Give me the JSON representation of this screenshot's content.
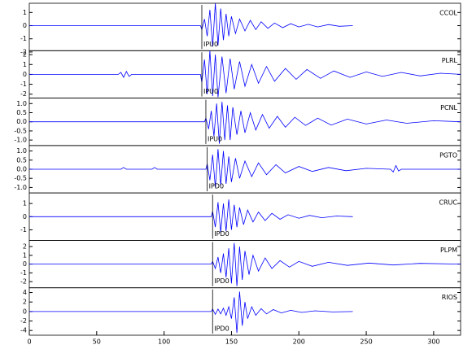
{
  "chart_data": [
    {
      "type": "line",
      "title": "CCOL",
      "color": "#0000ff",
      "xlim": [
        0,
        320
      ],
      "ylim": [
        -1.9,
        1.7
      ],
      "yticks": [
        -2,
        -1,
        0,
        1
      ],
      "pick": {
        "x": 128,
        "label": "IPU0"
      },
      "x": [
        0,
        127,
        128,
        130,
        132,
        134,
        136,
        138,
        140,
        142,
        144,
        146,
        148,
        150,
        153,
        156,
        160,
        164,
        168,
        172,
        177,
        182,
        188,
        194,
        200,
        207,
        214,
        222,
        230,
        240
      ],
      "values": [
        0,
        0,
        -0.3,
        0.5,
        -0.8,
        1.2,
        -1.6,
        1.7,
        -1.5,
        1.3,
        -1.1,
        0.9,
        -0.8,
        0.7,
        -0.6,
        0.5,
        -0.4,
        0.4,
        -0.3,
        0.3,
        -0.2,
        0.2,
        -0.15,
        0.15,
        -0.1,
        0.1,
        -0.1,
        0.08,
        -0.05,
        0
      ]
    },
    {
      "type": "line",
      "title": "PLRL",
      "color": "#0000ff",
      "xlim": [
        0,
        320
      ],
      "ylim": [
        -2.4,
        2.4
      ],
      "yticks": [
        -2,
        -1,
        0,
        1,
        2
      ],
      "pick": {
        "x": 128,
        "label": "IPU0"
      },
      "x": [
        0,
        66,
        68,
        70,
        72,
        74,
        76,
        127,
        128,
        130,
        132,
        134,
        136,
        138,
        140,
        143,
        146,
        149,
        152,
        156,
        160,
        165,
        170,
        176,
        182,
        190,
        198,
        206,
        216,
        226,
        238,
        250,
        262,
        276,
        290,
        305,
        320
      ],
      "values": [
        0,
        0,
        0.2,
        -0.3,
        0.3,
        -0.2,
        0,
        0,
        -0.8,
        1.5,
        -2.0,
        2.4,
        -2.2,
        2.0,
        -2.3,
        1.8,
        -1.9,
        1.6,
        -1.5,
        1.3,
        -1.2,
        1.0,
        -0.9,
        0.8,
        -0.7,
        0.6,
        -0.5,
        0.5,
        -0.4,
        0.35,
        -0.3,
        0.25,
        -0.2,
        0.2,
        -0.15,
        0.12,
        0
      ]
    },
    {
      "type": "line",
      "title": "PCNL",
      "color": "#0000ff",
      "xlim": [
        0,
        320
      ],
      "ylim": [
        -1.3,
        1.3
      ],
      "yticks": [
        {
          "value": -1,
          "label": "-1.0"
        },
        {
          "value": -0.5,
          "label": "-0.5"
        },
        {
          "value": 0,
          "label": "0.0"
        },
        {
          "value": 0.5,
          "label": "0.5"
        },
        {
          "value": 1,
          "label": "1.0"
        }
      ],
      "pick": {
        "x": 131,
        "label": "IPU0"
      },
      "x": [
        0,
        130,
        131,
        133,
        135,
        137,
        139,
        141,
        143,
        145,
        147,
        149,
        151,
        154,
        157,
        160,
        164,
        168,
        173,
        178,
        184,
        190,
        197,
        205,
        214,
        224,
        236,
        250,
        265,
        280,
        300,
        320
      ],
      "values": [
        0,
        0,
        0.2,
        -0.4,
        0.6,
        -0.8,
        1.0,
        -1.2,
        1.1,
        -1.0,
        0.9,
        -1.0,
        0.8,
        -0.7,
        0.6,
        -0.6,
        0.5,
        -0.45,
        0.4,
        -0.35,
        0.3,
        -0.3,
        0.25,
        -0.2,
        0.2,
        -0.18,
        0.15,
        -0.12,
        0.1,
        -0.08,
        0.06,
        0
      ]
    },
    {
      "type": "line",
      "title": "PGTO",
      "color": "#0000ff",
      "xlim": [
        0,
        320
      ],
      "ylim": [
        -1.3,
        1.3
      ],
      "yticks": [
        {
          "value": -1,
          "label": "-1.0"
        },
        {
          "value": -0.5,
          "label": "-0.5"
        },
        {
          "value": 0,
          "label": "0.0"
        },
        {
          "value": 0.5,
          "label": "0.5"
        },
        {
          "value": 1,
          "label": "1.0"
        }
      ],
      "pick": {
        "x": 132,
        "label": "IPD0"
      },
      "x": [
        0,
        68,
        70,
        72,
        91,
        93,
        95,
        131,
        132,
        134,
        136,
        138,
        140,
        142,
        144,
        146,
        148,
        150,
        153,
        156,
        160,
        165,
        170,
        176,
        183,
        190,
        200,
        210,
        222,
        235,
        250,
        268,
        270,
        272,
        274,
        276,
        290,
        320
      ],
      "values": [
        0,
        0,
        0.1,
        0,
        0,
        0.1,
        0,
        0,
        0.3,
        -0.6,
        0.8,
        -1.0,
        1.1,
        -0.9,
        1.0,
        -0.8,
        0.7,
        -0.7,
        0.6,
        -0.5,
        0.45,
        -0.4,
        0.35,
        -0.3,
        0.25,
        -0.2,
        0.15,
        -0.12,
        0.1,
        -0.08,
        0.05,
        0,
        -0.15,
        0.2,
        -0.1,
        0,
        0,
        0
      ]
    },
    {
      "type": "line",
      "title": "CRUC",
      "color": "#0000ff",
      "xlim": [
        0,
        320
      ],
      "ylim": [
        -1.8,
        1.8
      ],
      "yticks": [
        -1,
        0,
        1
      ],
      "pick": {
        "x": 136,
        "label": "IPD0"
      },
      "x": [
        0,
        135,
        136,
        138,
        140,
        142,
        144,
        146,
        148,
        150,
        152,
        154,
        156,
        159,
        162,
        166,
        170,
        175,
        180,
        186,
        192,
        200,
        208,
        217,
        228,
        240
      ],
      "values": [
        0,
        0,
        0.4,
        -0.8,
        1.1,
        -1.2,
        1.0,
        -1.1,
        1.3,
        -1.0,
        0.9,
        -0.8,
        0.7,
        -0.6,
        0.5,
        -0.4,
        0.35,
        -0.3,
        0.25,
        -0.2,
        0.15,
        -0.12,
        0.1,
        -0.08,
        0.05,
        0
      ]
    },
    {
      "type": "line",
      "title": "PLPM",
      "color": "#0000ff",
      "xlim": [
        0,
        320
      ],
      "ylim": [
        -2.7,
        2.7
      ],
      "yticks": [
        -2,
        -1,
        0,
        1,
        2
      ],
      "pick": {
        "x": 136,
        "label": "IPD0"
      },
      "x": [
        0,
        135,
        136,
        138,
        140,
        142,
        144,
        146,
        148,
        150,
        152,
        154,
        156,
        158,
        160,
        163,
        166,
        170,
        175,
        180,
        186,
        193,
        200,
        210,
        222,
        236,
        252,
        270,
        290,
        320
      ],
      "values": [
        0,
        0,
        0.3,
        -0.5,
        0.8,
        -1.0,
        1.2,
        -1.5,
        1.8,
        -2.2,
        2.4,
        -2.5,
        2.0,
        -1.8,
        1.5,
        -1.2,
        1.0,
        -0.8,
        0.7,
        -0.5,
        0.4,
        -0.35,
        0.3,
        -0.25,
        0.2,
        -0.15,
        0.12,
        -0.1,
        0.08,
        0
      ]
    },
    {
      "type": "line",
      "title": "RIOS",
      "color": "#0000ff",
      "xlim": [
        0,
        320
      ],
      "ylim": [
        -5,
        5
      ],
      "yticks": [
        -4,
        -2,
        0,
        2,
        4
      ],
      "xticks": [
        0,
        50,
        100,
        150,
        200,
        250,
        300
      ],
      "pick": {
        "x": 136,
        "label": "IPD0"
      },
      "x": [
        0,
        135,
        136,
        138,
        140,
        142,
        144,
        146,
        148,
        150,
        152,
        154,
        156,
        158,
        160,
        162,
        165,
        168,
        172,
        176,
        181,
        187,
        194,
        202,
        212,
        225,
        240
      ],
      "values": [
        0,
        0,
        0.5,
        -0.6,
        0.5,
        -0.5,
        0.7,
        -0.8,
        1.0,
        -1.5,
        3.0,
        -4.5,
        4.2,
        -3.0,
        2.0,
        -1.5,
        1.0,
        -0.8,
        0.6,
        -0.5,
        0.4,
        -0.3,
        0.25,
        -0.2,
        0.15,
        -0.1,
        0
      ]
    }
  ]
}
